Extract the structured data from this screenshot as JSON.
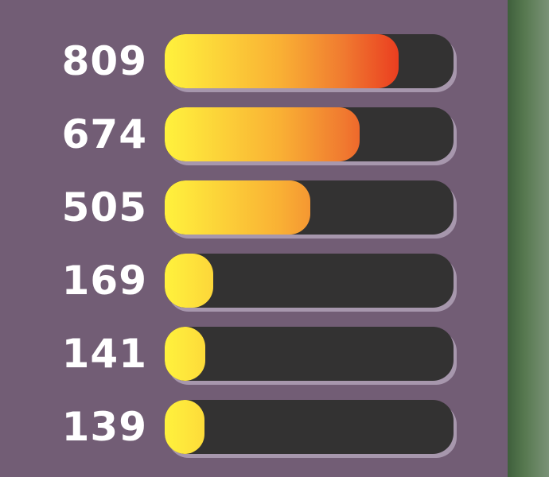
{
  "max_value": 1000,
  "colors": {
    "background": "#725d75",
    "track": "#333232",
    "fill_start": "#fff23d",
    "fill_end": "#e22a1a"
  },
  "bars": [
    {
      "label": "809",
      "value": 809
    },
    {
      "label": "674",
      "value": 674
    },
    {
      "label": "505",
      "value": 505
    },
    {
      "label": "169",
      "value": 169
    },
    {
      "label": "141",
      "value": 141
    },
    {
      "label": "139",
      "value": 139
    }
  ]
}
